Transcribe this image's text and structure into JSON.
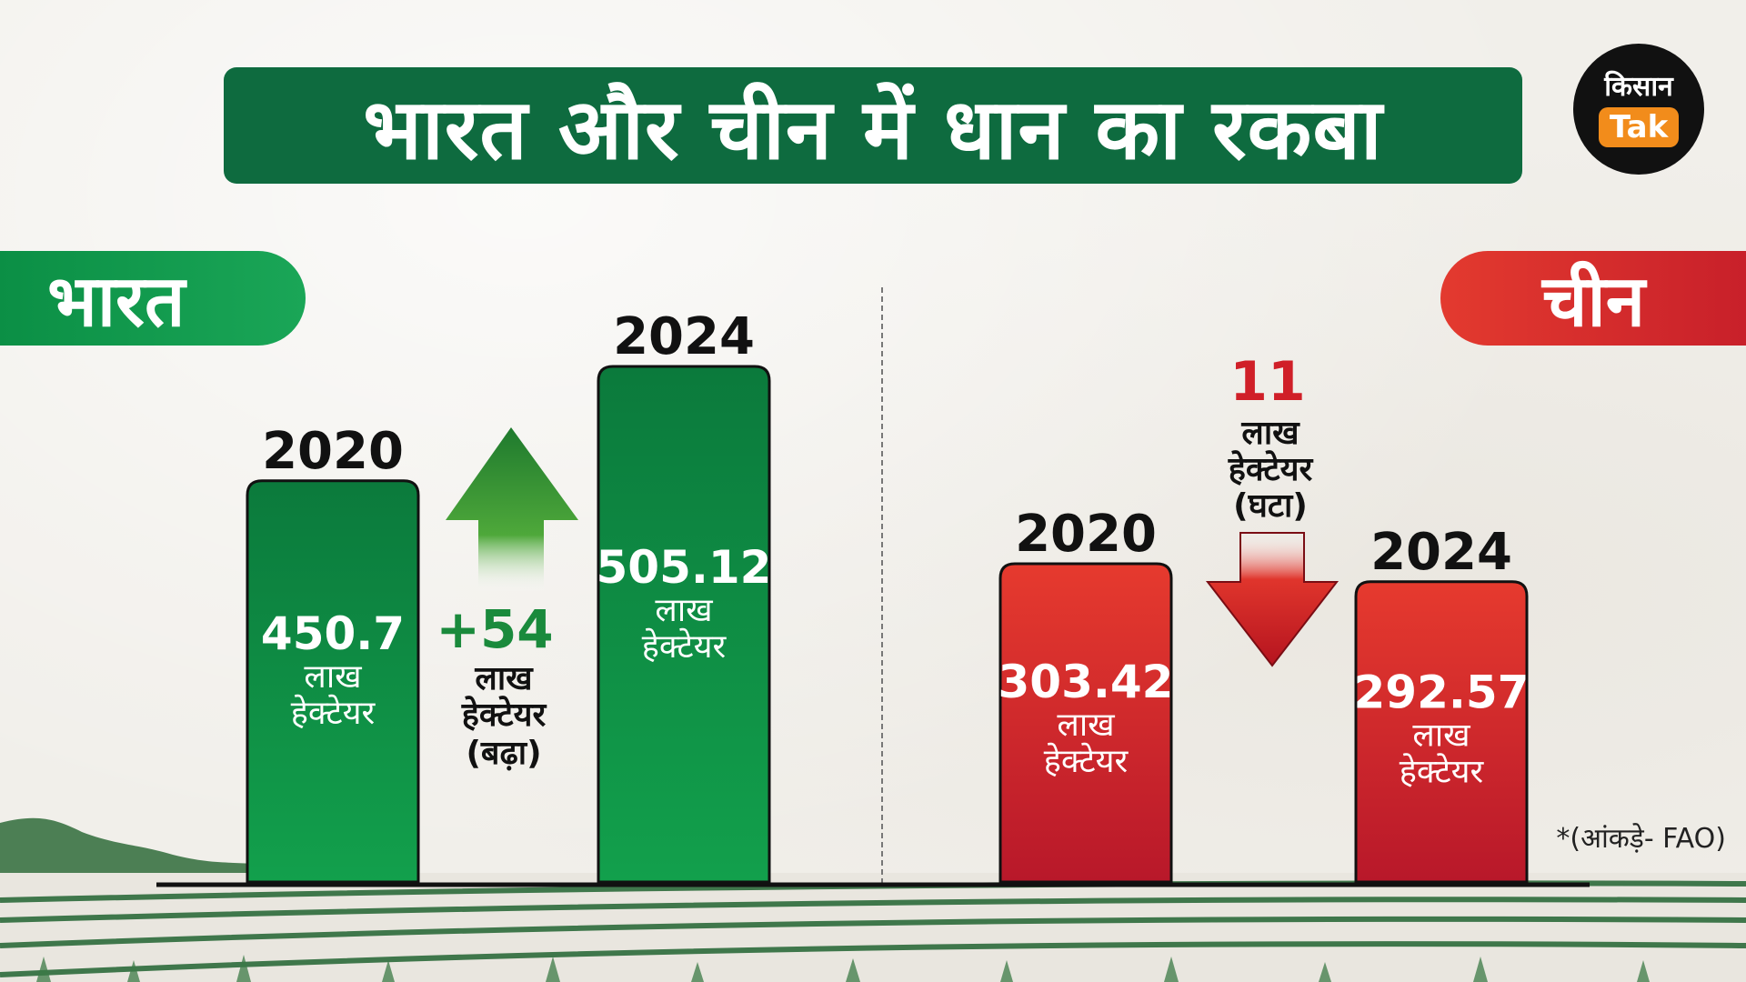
{
  "title": "भारत और चीन में धान का रकबा",
  "logo": {
    "line1": "किसान",
    "line2": "Tak"
  },
  "source_note": "*(आंकड़े- FAO)",
  "unit_line1": "लाख",
  "unit_line2": "हेक्टेयर",
  "colors": {
    "title_bg": "#0e6b3f",
    "india": "#0b8f45",
    "china": "#d42a2c",
    "increase_arrow": "#3fa33a",
    "decrease_arrow": "#d01f28"
  },
  "chart_data": [
    {
      "type": "bar",
      "country_label": "भारत",
      "categories": [
        "2020",
        "2024"
      ],
      "values": [
        450.7,
        505.12
      ],
      "value_labels": [
        "450.7",
        "505.12"
      ],
      "change": {
        "label": "+54",
        "line2": "लाख",
        "line3": "हेक्टेयर",
        "line4": "(बढ़ा)",
        "direction": "up"
      }
    },
    {
      "type": "bar",
      "country_label": "चीन",
      "categories": [
        "2020",
        "2024"
      ],
      "values": [
        303.42,
        292.57
      ],
      "value_labels": [
        "303.42",
        "292.57"
      ],
      "change": {
        "label": "11",
        "line2": "लाख",
        "line3": "हेक्टेयर",
        "line4": "(घटा)",
        "direction": "down"
      }
    }
  ]
}
